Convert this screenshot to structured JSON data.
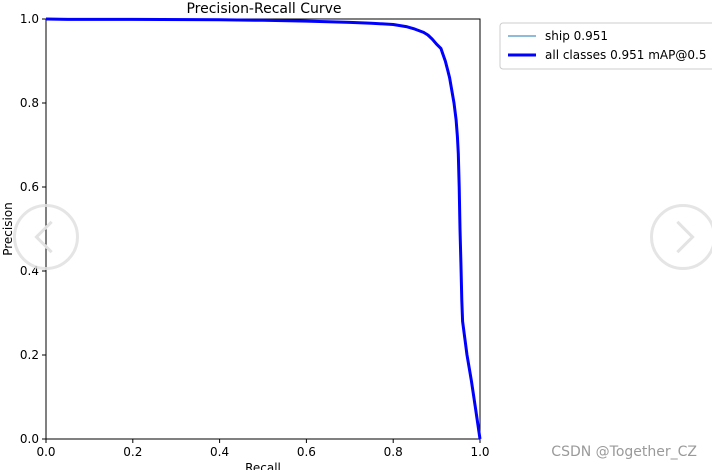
{
  "chart_data": {
    "type": "line",
    "title": "Precision-Recall Curve",
    "xlabel": "Recall",
    "ylabel": "Precision",
    "xlim": [
      0,
      1
    ],
    "ylim": [
      0,
      1
    ],
    "xticks": [
      "0.0",
      "0.2",
      "0.4",
      "0.6",
      "0.8",
      "1.0"
    ],
    "yticks": [
      "0.0",
      "0.2",
      "0.4",
      "0.6",
      "0.8",
      "1.0"
    ],
    "grid": false,
    "legend_position": "outside-top-right",
    "series": [
      {
        "name": "ship 0.951",
        "color": "#1f77b4",
        "x": [
          0.0,
          0.05,
          0.2,
          0.4,
          0.5,
          0.6,
          0.7,
          0.75,
          0.8,
          0.83,
          0.85,
          0.87,
          0.88,
          0.89,
          0.9,
          0.91,
          0.915,
          0.92,
          0.925,
          0.93,
          0.935,
          0.94,
          0.945,
          0.948,
          0.95,
          0.952,
          0.954,
          0.956,
          0.958,
          0.96,
          0.965,
          0.97,
          0.98,
          0.99,
          1.0
        ],
        "y": [
          1.0,
          0.999,
          0.999,
          0.998,
          0.997,
          0.995,
          0.992,
          0.99,
          0.987,
          0.982,
          0.976,
          0.968,
          0.962,
          0.952,
          0.94,
          0.93,
          0.915,
          0.9,
          0.88,
          0.86,
          0.83,
          0.8,
          0.76,
          0.72,
          0.68,
          0.6,
          0.5,
          0.42,
          0.33,
          0.28,
          0.24,
          0.2,
          0.14,
          0.07,
          0.0
        ]
      },
      {
        "name": "all classes 0.951 mAP@0.5",
        "color": "#0000ff",
        "x": [
          0.0,
          0.05,
          0.2,
          0.4,
          0.5,
          0.6,
          0.7,
          0.75,
          0.8,
          0.83,
          0.85,
          0.87,
          0.88,
          0.89,
          0.9,
          0.91,
          0.915,
          0.92,
          0.925,
          0.93,
          0.935,
          0.94,
          0.945,
          0.948,
          0.95,
          0.952,
          0.954,
          0.956,
          0.958,
          0.96,
          0.965,
          0.97,
          0.98,
          0.99,
          1.0
        ],
        "y": [
          1.0,
          0.999,
          0.999,
          0.998,
          0.997,
          0.995,
          0.992,
          0.99,
          0.987,
          0.982,
          0.976,
          0.968,
          0.962,
          0.952,
          0.94,
          0.93,
          0.915,
          0.9,
          0.88,
          0.86,
          0.83,
          0.8,
          0.76,
          0.72,
          0.68,
          0.6,
          0.5,
          0.42,
          0.33,
          0.28,
          0.24,
          0.2,
          0.14,
          0.07,
          0.0
        ]
      }
    ]
  },
  "watermark": "CSDN @Together_CZ",
  "nav": {
    "prev_icon": "chevron-left-icon",
    "next_icon": "chevron-right-icon"
  }
}
